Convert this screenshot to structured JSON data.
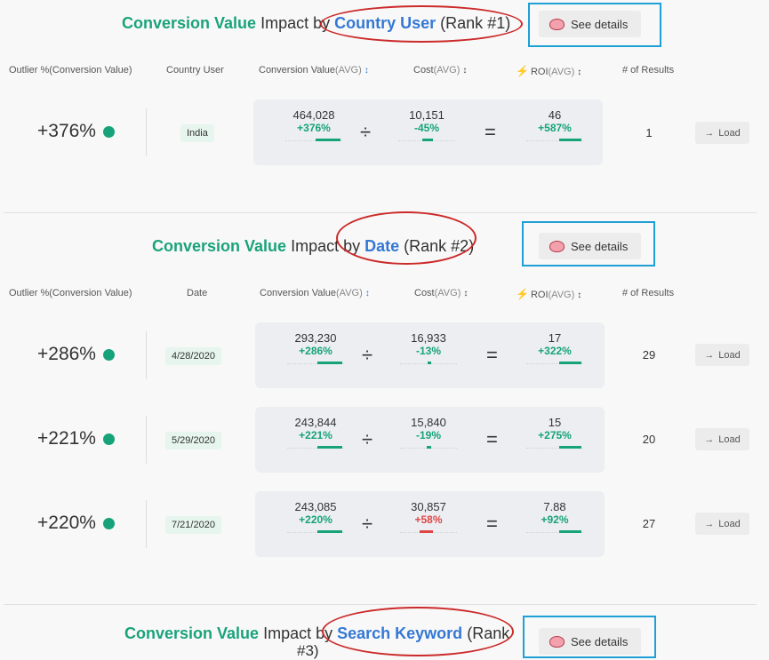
{
  "common": {
    "metric": "Conversion Value",
    "impact_by": "Impact by",
    "details_label": "See details",
    "load_label": "Load",
    "headers": {
      "outlier": "Outlier %(Conversion Value)",
      "value": "Conversion Value",
      "cost": "Cost",
      "roi": "ROI",
      "avg": "(AVG)",
      "results": "# of Results"
    },
    "icons": {
      "details": "brain-icon",
      "load": "arrow-right-icon",
      "roi": "lightning-icon",
      "status": "green-dot-icon"
    },
    "colors": {
      "positive": "#16a37a",
      "negative": "#e04545",
      "metric": "#1aa37a",
      "dimension": "#3478d4"
    }
  },
  "sections": [
    {
      "dimension": "Country User",
      "rank": "(Rank #1)",
      "column": "Country User",
      "rows": [
        {
          "outlier": "+376%",
          "chip": "India",
          "value": "464,028",
          "value_pct": "+376%",
          "cost": "10,151",
          "cost_pct": "-45%",
          "roi": "46",
          "roi_pct": "+587%",
          "results": "1"
        }
      ]
    },
    {
      "dimension": "Date",
      "rank": "(Rank #2)",
      "column": "Date",
      "rows": [
        {
          "outlier": "+286%",
          "chip": "4/28/2020",
          "value": "293,230",
          "value_pct": "+286%",
          "cost": "16,933",
          "cost_pct": "-13%",
          "roi": "17",
          "roi_pct": "+322%",
          "results": "29"
        },
        {
          "outlier": "+221%",
          "chip": "5/29/2020",
          "value": "243,844",
          "value_pct": "+221%",
          "cost": "15,840",
          "cost_pct": "-19%",
          "roi": "15",
          "roi_pct": "+275%",
          "results": "20"
        },
        {
          "outlier": "+220%",
          "chip": "7/21/2020",
          "value": "243,085",
          "value_pct": "+220%",
          "cost": "30,857",
          "cost_pct": "+58%",
          "roi": "7.88",
          "roi_pct": "+92%",
          "results": "27"
        }
      ]
    },
    {
      "dimension": "Search Keyword",
      "rank": "(Rank",
      "rank_line2": "#3)"
    }
  ]
}
